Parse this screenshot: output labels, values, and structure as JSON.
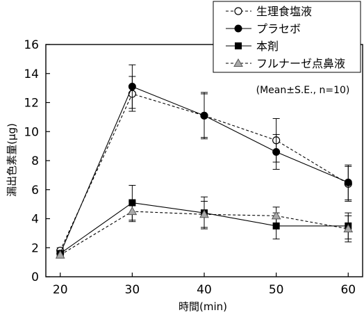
{
  "chart_data": {
    "type": "line",
    "xlabel": "時間(min)",
    "ylabel": "漏出色素量(μg)",
    "x": [
      20,
      30,
      40,
      50,
      60
    ],
    "xlim": [
      18,
      62
    ],
    "ylim": [
      0,
      16
    ],
    "xticks": [
      20,
      30,
      40,
      50,
      60
    ],
    "yticks": [
      0,
      2,
      4,
      6,
      8,
      10,
      12,
      14,
      16
    ],
    "annotation": "(Mean±S.E., n=10)",
    "grid": false,
    "legend_position": "top-right",
    "series": [
      {
        "name": "生理食塩液",
        "marker": "circle-open",
        "line": "dashed",
        "color": "#000000",
        "values": [
          1.8,
          12.6,
          11.1,
          9.4,
          6.4
        ],
        "errors": [
          0.2,
          1.2,
          1.6,
          1.5,
          1.2
        ]
      },
      {
        "name": "プラセボ",
        "marker": "circle-filled",
        "line": "solid",
        "color": "#000000",
        "values": [
          1.6,
          13.1,
          11.1,
          8.6,
          6.5
        ],
        "errors": [
          0.2,
          1.5,
          1.5,
          1.2,
          1.2
        ]
      },
      {
        "name": "本剤",
        "marker": "square-filled",
        "line": "solid",
        "color": "#000000",
        "values": [
          1.6,
          5.1,
          4.4,
          3.5,
          3.5
        ],
        "errors": [
          0.2,
          1.2,
          1.1,
          0.9,
          0.9
        ]
      },
      {
        "name": "フルナーゼ点鼻液",
        "marker": "triangle-gray",
        "line": "dashed",
        "color": "#000000",
        "values": [
          1.5,
          4.5,
          4.3,
          4.2,
          3.3
        ],
        "errors": [
          0.2,
          0.7,
          0.9,
          0.6,
          0.9
        ]
      }
    ]
  }
}
